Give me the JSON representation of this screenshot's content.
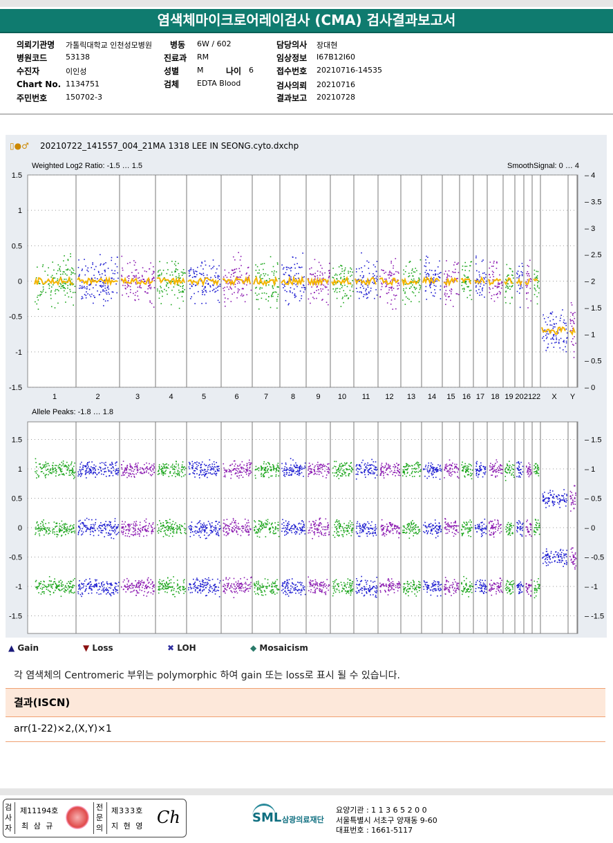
{
  "title": "염색체마이크로어레이검사 (CMA) 검사결과보고서",
  "info": {
    "institution_label": "의뢰기관명",
    "institution": "가톨릭대학교 인천성모병원",
    "ward_label": "병동",
    "ward": "6W / 602",
    "doctor_label": "담당의사",
    "doctor": "장대현",
    "hospital_code_label": "병원코드",
    "hospital_code": "53138",
    "dept_label": "진료과",
    "dept": "RM",
    "clinical_label": "임상정보",
    "clinical": "I67B12I60",
    "patient_label": "수진자",
    "patient": "이인성",
    "sex_label": "성별",
    "sex": "M",
    "age_label": "나이",
    "age": "6",
    "receipt_label": "접수번호",
    "receipt": "20210716-14535",
    "chart_label": "Chart No.",
    "chart": "1134751",
    "specimen_label": "검체",
    "specimen": "EDTA Blood",
    "request_label": "검사의뢰",
    "request": "20210716",
    "id_label": "주민번호",
    "id": "150702-3",
    "report_label": "결과보고",
    "report": "20210728"
  },
  "filename": "20210722_141557_004_21MA 1318 LEE IN SEONG.cyto.dxchp",
  "chart_data": [
    {
      "type": "scatter",
      "title": "Weighted Log2 Ratio: -1.5 … 1.5",
      "right_title": "SmoothSignal: 0 … 4",
      "ylim": [
        -1.5,
        1.5
      ],
      "yticks": [
        "1.5",
        "1",
        "0.5",
        "0",
        "-0.5",
        "-1",
        "-1.5"
      ],
      "y2ticks": [
        "4",
        "3.5",
        "3",
        "2.5",
        "2",
        "1.5",
        "1",
        "0.5",
        "0"
      ],
      "chromosomes": [
        "1",
        "2",
        "3",
        "4",
        "5",
        "6",
        "7",
        "8",
        "9",
        "10",
        "11",
        "12",
        "13",
        "14",
        "15",
        "16",
        "17",
        "18",
        "19",
        "20",
        "21",
        "22",
        "X",
        "Y"
      ],
      "log2_ratio": [
        0,
        0,
        0,
        0,
        0,
        0,
        0,
        0,
        0,
        0,
        0,
        0,
        0,
        0,
        0,
        0,
        0,
        0,
        0,
        0,
        0,
        0,
        -0.7,
        -0.7
      ],
      "smooth_signal": [
        2,
        2,
        2,
        2,
        2,
        2,
        2,
        2,
        2,
        2,
        2,
        2,
        2,
        2,
        2,
        2,
        2,
        2,
        2,
        2,
        2,
        2,
        1,
        1
      ]
    },
    {
      "type": "scatter",
      "title": "Allele Peaks: -1.8 … 1.8",
      "ylim": [
        -1.8,
        1.8
      ],
      "yticks": [
        "1.5",
        "1",
        "0.5",
        "0",
        "-0.5",
        "-1",
        "-1.5"
      ],
      "peaks_autosome": [
        1,
        0,
        -1
      ],
      "peaks_X": [
        0.5,
        -0.5
      ]
    }
  ],
  "colors": {
    "green": "#1aa51a",
    "blue": "#1a1ad0",
    "purple": "#8a18b0",
    "smooth": "#f5b400",
    "teal": "#0f7b6f"
  },
  "legend": [
    "Gain",
    "Loss",
    "LOH",
    "Mosaicism"
  ],
  "note": "각 염색체의 Centromeric 부위는 polymorphic 하여 gain 또는 loss로 표시 될 수 있습니다.",
  "result_header": "결과(ISCN)",
  "result": "arr(1-22)×2,(X,Y)×1",
  "footer": {
    "tester_label": "검사자",
    "tester_no": "제11194호",
    "tester_name": "최 삼 규",
    "specialist_label": "전문의",
    "specialist_no": "제333호",
    "specialist_name": "지 현 영",
    "org": "삼광의료재단",
    "logo": "SML",
    "code": "요양기관 : 1 1 3 6 5 2 0 0",
    "address": "서울특별시 서초구 양재동 9-60",
    "phone": "대표번호 : 1661-5117"
  }
}
